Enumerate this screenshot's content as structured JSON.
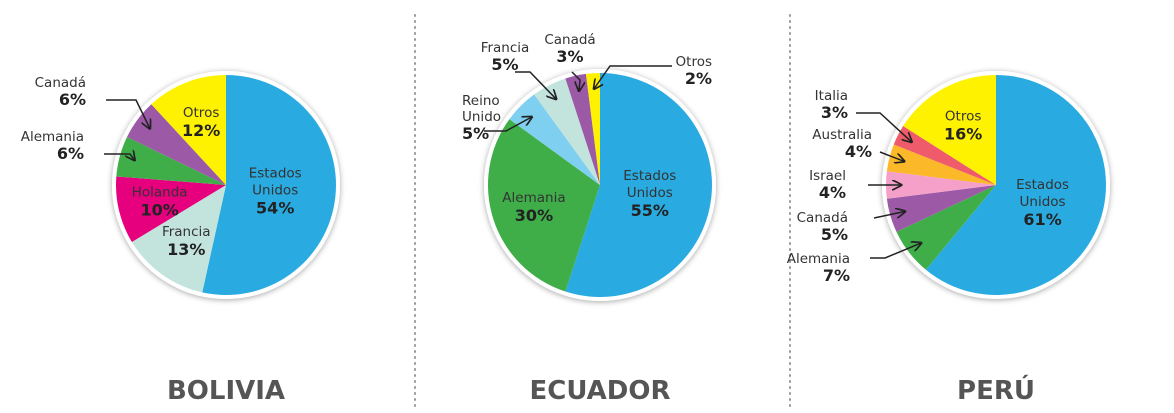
{
  "chart_data": [
    {
      "type": "pie",
      "title": "BOLIVIA",
      "categories": [
        "Estados Unidos",
        "Francia",
        "Holanda",
        "Alemania",
        "Canadá",
        "Otros"
      ],
      "values": [
        54,
        13,
        10,
        6,
        6,
        12
      ],
      "value_labels": [
        "54%",
        "13%",
        "10%",
        "6%",
        "6%",
        "12%"
      ],
      "colors": [
        "#29abe2",
        "#c3e4dc",
        "#e6007e",
        "#3fae49",
        "#9b59a6",
        "#fff200"
      ]
    },
    {
      "type": "pie",
      "title": "ECUADOR",
      "categories": [
        "Estados Unidos",
        "Alemania",
        "Reino Unido",
        "Francia",
        "Canadá",
        "Otros"
      ],
      "values": [
        55,
        30,
        5,
        5,
        3,
        2
      ],
      "value_labels": [
        "55%",
        "30%",
        "5%",
        "5%",
        "3%",
        "2%"
      ],
      "colors": [
        "#29abe2",
        "#3fae49",
        "#7fd0f0",
        "#c3e4dc",
        "#9b59a6",
        "#fff200"
      ]
    },
    {
      "type": "pie",
      "title": "PERÚ",
      "categories": [
        "Estados Unidos",
        "Alemania",
        "Canadá",
        "Israel",
        "Australia",
        "Italia",
        "Otros"
      ],
      "values": [
        61,
        7,
        5,
        4,
        4,
        3,
        16
      ],
      "value_labels": [
        "61%",
        "7%",
        "5%",
        "4%",
        "4%",
        "3%",
        "16%"
      ],
      "colors": [
        "#29abe2",
        "#3fae49",
        "#9b59a6",
        "#f4a0c8",
        "#fbb829",
        "#ef5b6a",
        "#fff200"
      ]
    }
  ]
}
